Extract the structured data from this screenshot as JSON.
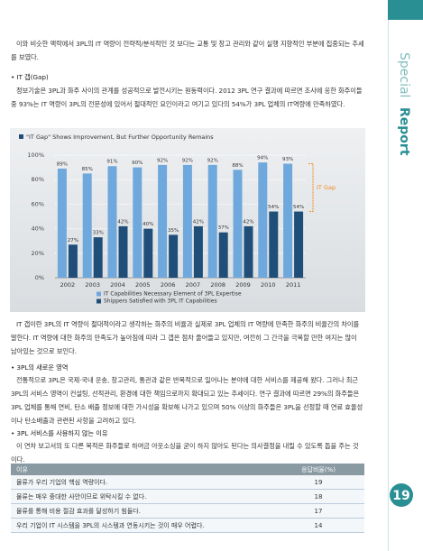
{
  "paragraphs": [
    "이와 비슷한 맥락에서 3PL의 IT 역량이 전략적/분석적인 것 보다는 교통 및 창고 관리와 같이 실행 지향적인 부분에 집중되는 추세를 보였다.",
    "정보기술은 3PL과 화주 사이의 관계를 성공적으로 발전시키는 원동력이다. 2012 3PL 연구 결과에 따르면 조사에 응한 화주이들 중 93%는 IT 역량이 3PL의 전문성에 있어서 절대적인 요인이라고 여기고 있다의 54%가 3PL 업체의 IT역량에 만족하였다.",
    "IT 갭이란 3PL의 IT 역량이 절대적이라고 생각하는 화주의 비율과 실제로 3PL 업체의 IT 역량에 만족한 화주의 비율간의 차이를 말한다. IT 역량에 대한 화주의 만족도가 높아짐에 따라 그 갭은 점차 줄어들고 있지만, 여전히 그 간극을 극복할 만한 여지는 많이 남아있는 것으로 보인다.",
    "전통적으로 3PL은 국제·국내 운송, 창고관리, 통관과 같은 반복적으로 일어나는 분야에 대한 서비스를 제공해 왔다. 그러나 최근 3PL의 서비스 영역이 컨설팅, 선적관리, 환경에 대한 책임으로까지 확대되고 있는 추세이다. 연구 결과에 따르면 29%의 화주들은 3PL 업체를 통해 연비, 탄소 배출 정보에 대한 가시성을 확보해 나가고 있으며 50% 이상의 화주들은 3PL을 선정할 때 연료 효율성이나 탄소배출과 관련된 사항을 고려하고 있다.",
    "이 연차 보고서의 또 다른 목적은 화주들로 하여금 아웃소싱을 굳이 하지 않아도 된다는 의사결정을 내릴 수 있도록 돕을 주는 것이다."
  ],
  "headings": [
    "• IT 갭(Gap)",
    "• 3PL의 새로운 영역",
    "• 3PL 서비스를 사용하지 않는 이유"
  ],
  "chart_data": {
    "type": "bar",
    "title": "\"IT Gap\" Shows Improvement, But Further Opportunity Remains",
    "categories": [
      "2002",
      "2003",
      "2004",
      "2005",
      "2006",
      "2007",
      "2008",
      "2009",
      "2010",
      "2011"
    ],
    "series": [
      {
        "name": "IT Capabilities Necessary Element of 3PL Expertise",
        "color": "#6fa8dc",
        "values": [
          89,
          85,
          91,
          90,
          92,
          92,
          92,
          88,
          94,
          93
        ],
        "value_labels": [
          "89%",
          "85%",
          "91%",
          "90%",
          "92%",
          "92%",
          "92%",
          "88%",
          "94%",
          "93%"
        ]
      },
      {
        "name": "Shippers Satisfied with 3PL IT Capabilities",
        "color": "#1f4e79",
        "values": [
          27,
          33,
          42,
          40,
          35,
          42,
          37,
          42,
          54,
          54
        ],
        "value_labels": [
          "27%",
          "33%",
          "42%",
          "40%",
          "35%",
          "42%",
          "37%",
          "42%",
          "54%",
          "54%"
        ]
      }
    ],
    "ylim": [
      0,
      100
    ],
    "yticks": [
      {
        "value": 0,
        "label": "0%"
      },
      {
        "value": 20,
        "label": "20%"
      },
      {
        "value": 40,
        "label": "40%"
      },
      {
        "value": 60,
        "label": "60%"
      },
      {
        "value": 80,
        "label": "80%"
      },
      {
        "value": 100,
        "label": "100%"
      }
    ],
    "grid": true,
    "annotation": "IT Gap",
    "annotation_color": "#f08a24"
  },
  "table": {
    "header": [
      "이유",
      "응답비율(%)"
    ],
    "rows": [
      [
        "물류가 우리 기업의 핵심 역량이다.",
        19
      ],
      [
        "물류는 매우 중대한 사안이므로 위탁시킬 수 없다.",
        18
      ],
      [
        "물류를 통해 비용 절감 효과를 달성하기 힘들다.",
        17
      ],
      [
        "우리 기업이 IT 시스템을 3PL의 시스템과 연동시키는 것이 매우 어렵다.",
        14
      ]
    ]
  },
  "sidebar": {
    "section": "Special",
    "section_bold": "Report",
    "page_number": "19"
  }
}
